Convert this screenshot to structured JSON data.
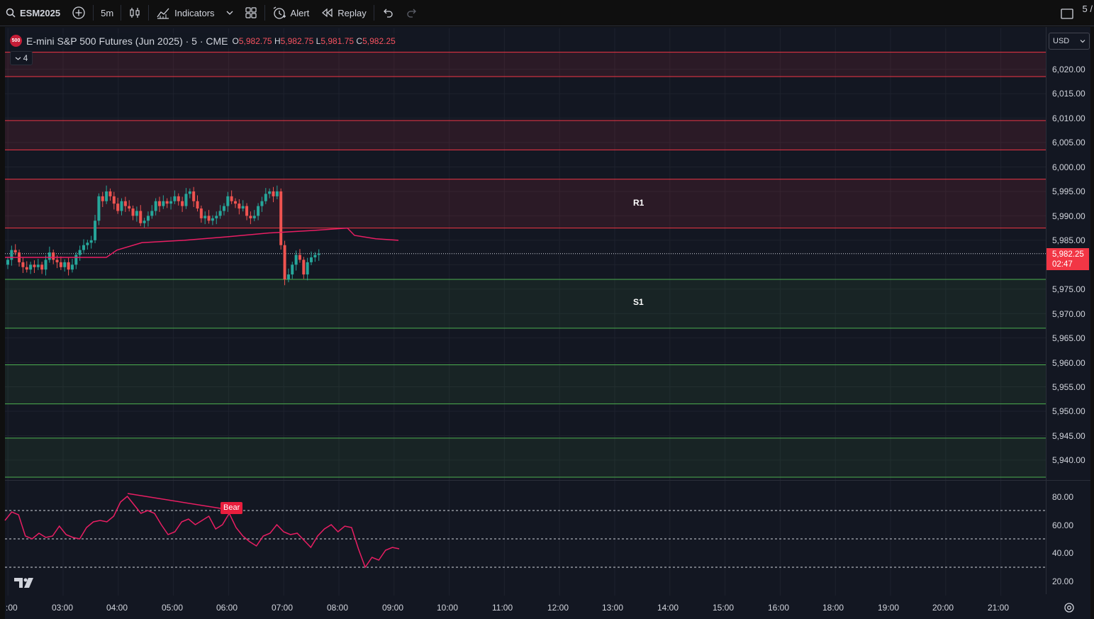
{
  "toolbar": {
    "symbol": "ESM2025",
    "interval": "5m",
    "indicators_label": "Indicators",
    "alert_label": "Alert",
    "replay_label": "Replay",
    "right_cut_text": "5 /"
  },
  "legend": {
    "badge": "500",
    "title": "E-mini S&P 500 Futures (Jun 2025) · 5 · CME",
    "open_key": "O",
    "open": "5,982.75",
    "high_key": "H",
    "high": "5,982.75",
    "low_key": "L",
    "low": "5,981.75",
    "close_key": "C",
    "close": "5,982.25",
    "collapsed_count": "4"
  },
  "currency": "USD",
  "price_axis": [
    "6,020.00",
    "6,015.00",
    "6,010.00",
    "6,005.00",
    "6,000.00",
    "5,995.00",
    "5,990.00",
    "5,985.00",
    "5,975.00",
    "5,970.00",
    "5,965.00",
    "5,960.00",
    "5,955.00",
    "5,950.00",
    "5,945.00",
    "5,940.00"
  ],
  "current_price": {
    "price": "5,982.25",
    "countdown": "02:47"
  },
  "rsi_axis": [
    "80.00",
    "60.00",
    "40.00",
    "20.00"
  ],
  "time_axis": [
    ":00",
    "03:00",
    "04:00",
    "05:00",
    "06:00",
    "07:00",
    "08:00",
    "09:00",
    "10:00",
    "11:00",
    "12:00",
    "13:00",
    "14:00",
    "15:00",
    "16:00",
    "18:00",
    "19:00",
    "20:00",
    "21:00"
  ],
  "levels": {
    "r1": "R1",
    "s1": "S1"
  },
  "bear_label": "Bear",
  "colors": {
    "up": "#26a69a",
    "down": "#ef5350",
    "vwap": "#e91e63",
    "resistance": "#f23645",
    "support": "#4caf50",
    "rsi": "#e91e63"
  },
  "icons": [
    "search-icon",
    "add-symbol-icon",
    "candles-icon",
    "indicators-icon",
    "templates-icon",
    "alert-icon",
    "replay-icon",
    "undo-icon",
    "redo-icon",
    "fullscreen-icon",
    "tradingview-logo",
    "settings-icon"
  ]
}
